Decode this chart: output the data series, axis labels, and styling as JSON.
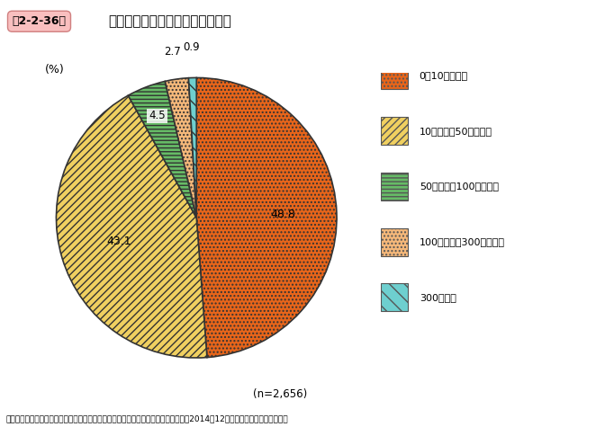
{
  "title_box": "第2-2-36図",
  "title_main": "中核人材の確保にかけられる費用",
  "values": [
    48.8,
    43.1,
    4.5,
    2.7,
    0.9
  ],
  "labels": [
    "0～10万円以内",
    "10万円超～50万円以内",
    "50万円超～100万円未満",
    "100万円超～300万円以内",
    "300万円超"
  ],
  "pct_labels": [
    "48.8",
    "43.1",
    "4.5",
    "2.7",
    "0.9"
  ],
  "colors": [
    "#E8651A",
    "#F0D060",
    "#66BB66",
    "#F5B87A",
    "#6ECFCF"
  ],
  "hatch_patterns": [
    "......",
    "//////",
    "------",
    "......",
    "\\\\\\\\"
  ],
  "startangle": 90,
  "note": "(n=2,656)",
  "source": "資料：中小企業庁委託「中小企業・小規模事業者の人材確保と育成に関する調査」（2014年12月、（株）野村総合研究所）",
  "ylabel": "(%)",
  "background_color": "#FFFFFF",
  "label_radii": [
    0.65,
    0.6,
    0.8,
    1.18,
    1.18
  ],
  "legend_marker_colors": [
    "#E8651A",
    "#F0D060",
    "#66BB66",
    "#F5B87A",
    "#6ECFCF"
  ]
}
